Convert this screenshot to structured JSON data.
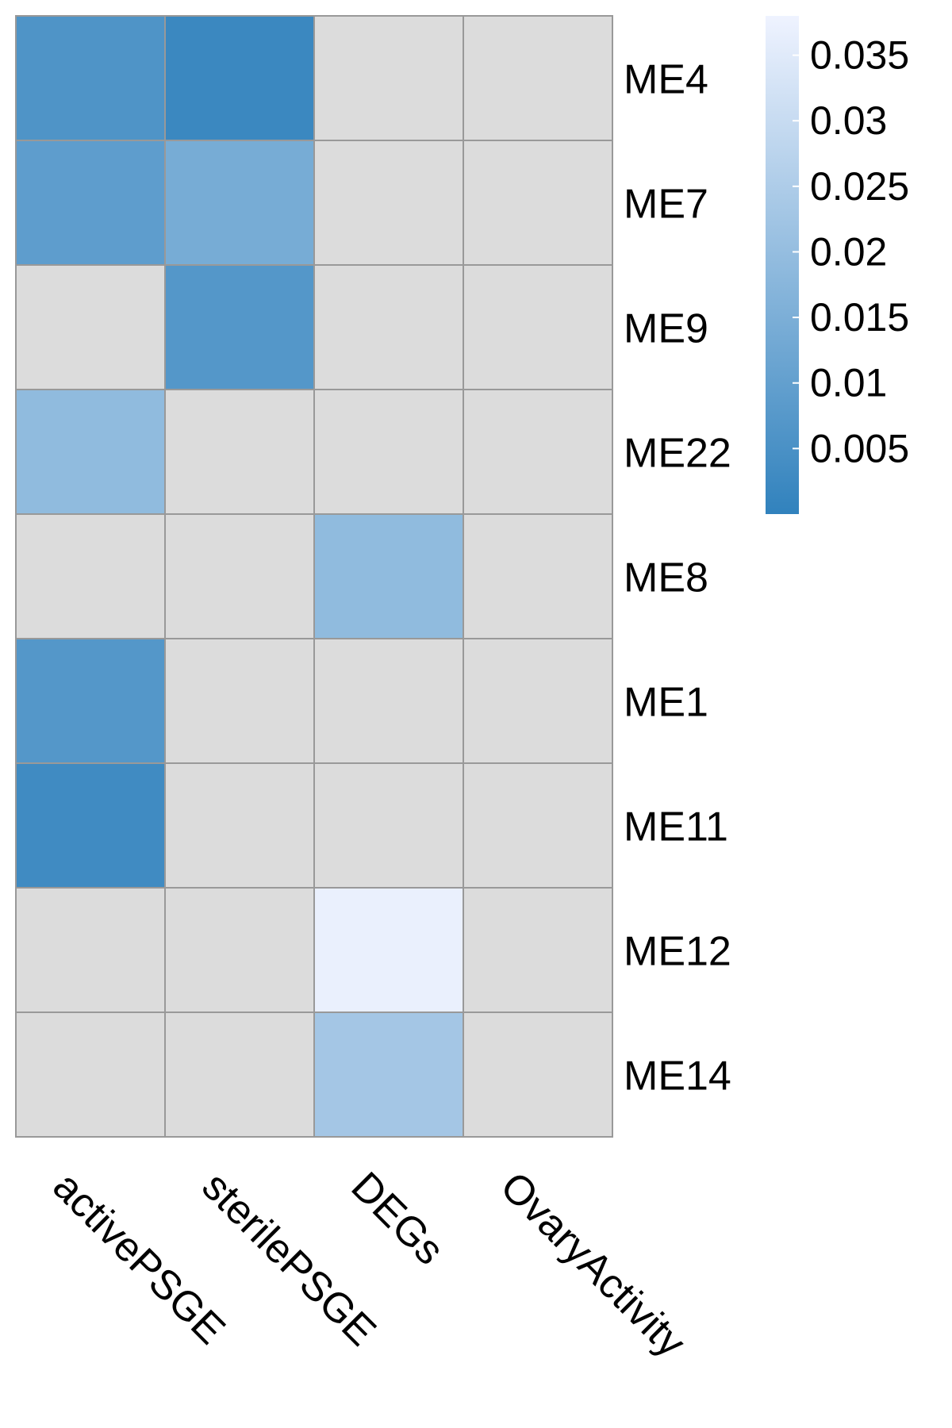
{
  "chart_data": {
    "type": "heatmap",
    "title": "",
    "xlabel": "",
    "ylabel": "",
    "columns": [
      "activePSGE",
      "sterilePSGE",
      "DEGs",
      "OvaryActivity"
    ],
    "rows": [
      "ME4",
      "ME7",
      "ME9",
      "ME22",
      "ME8",
      "ME1",
      "ME11",
      "ME12",
      "ME14"
    ],
    "values": [
      [
        0.006,
        0.002,
        null,
        null
      ],
      [
        0.009,
        0.014,
        null,
        null
      ],
      [
        null,
        0.007,
        null,
        null
      ],
      [
        0.019,
        null,
        null,
        null
      ],
      [
        null,
        null,
        0.019,
        null
      ],
      [
        0.007,
        null,
        null,
        null
      ],
      [
        0.003,
        null,
        null,
        null
      ],
      [
        null,
        null,
        0.037,
        null
      ],
      [
        null,
        null,
        0.023,
        null
      ]
    ],
    "missing_color": "#dcdcdc",
    "grid_color": "#999999",
    "colorbar": {
      "range": [
        0.0,
        0.038
      ],
      "low_color": "#3182bd",
      "high_color": "#eff3ff",
      "ticks": [
        0.035,
        0.03,
        0.025,
        0.02,
        0.015,
        0.01,
        0.005
      ],
      "tick_labels": [
        "0.035",
        "0.03",
        "0.025",
        "0.02",
        "0.015",
        "0.01",
        "0.005"
      ],
      "legend_position": "top-right"
    }
  }
}
